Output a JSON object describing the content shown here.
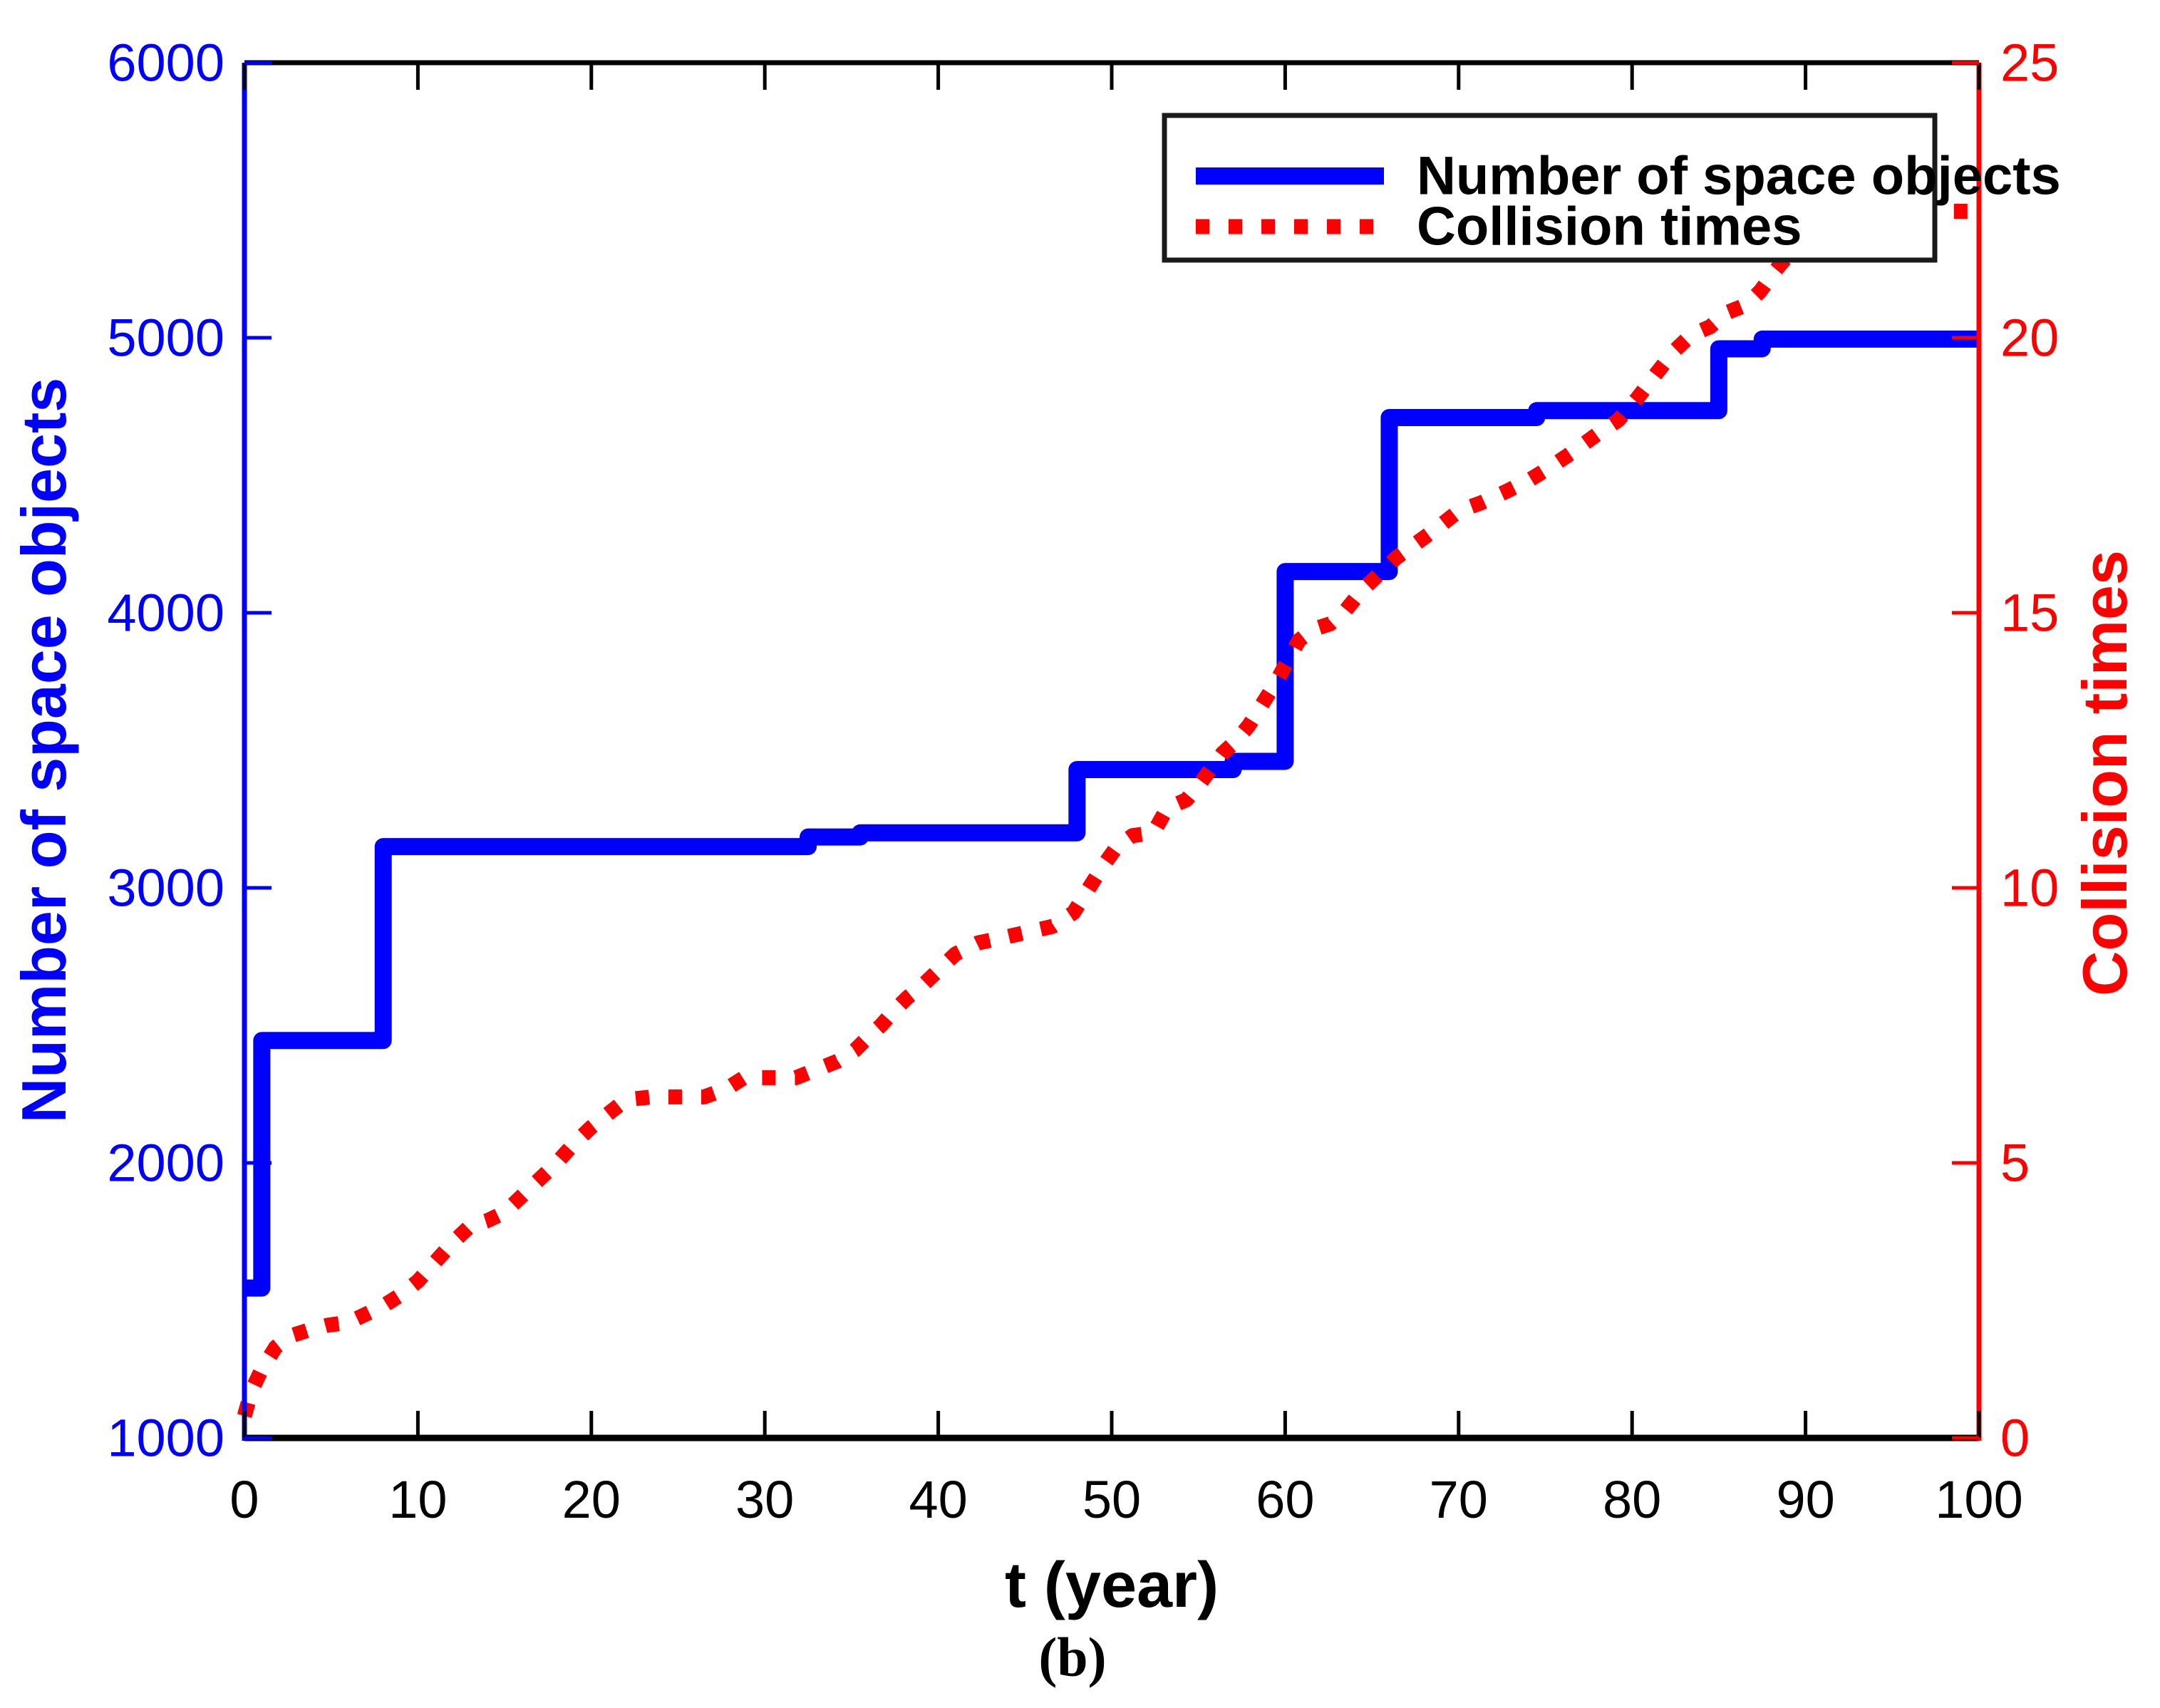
{
  "caption": "(b)",
  "chart_data": {
    "type": "line",
    "title": "",
    "xlabel": "t (year)",
    "ylabel_left": "Number of space objects",
    "ylabel_right": "Collision times",
    "x_range": [
      0,
      100
    ],
    "y_left_range": [
      1000,
      6000
    ],
    "y_right_range": [
      0,
      25
    ],
    "x_ticks": [
      0,
      10,
      20,
      30,
      40,
      50,
      60,
      70,
      80,
      90,
      100
    ],
    "y_left_ticks": [
      1000,
      2000,
      3000,
      4000,
      5000,
      6000
    ],
    "y_right_ticks": [
      0,
      5,
      10,
      15,
      20,
      25
    ],
    "grid": "off",
    "legend_position": "top-right-inside",
    "colors": {
      "objects_line": "#0000ff",
      "collisions_line": "#ff0000",
      "x_axis": "#000000",
      "left_axis": "#0000ff",
      "right_axis": "#ff0000",
      "background": "#ffffff",
      "legend_border": "#1a1a1a"
    },
    "series": [
      {
        "name": "Number of space objects",
        "axis": "left",
        "style": "step-solid",
        "color": "#0000ff",
        "steps": [
          [
            0,
            1545
          ],
          [
            1,
            2445
          ],
          [
            8,
            3150
          ],
          [
            32.5,
            3185
          ],
          [
            35.5,
            3200
          ],
          [
            48,
            3430
          ],
          [
            57,
            3460
          ],
          [
            60,
            4150
          ],
          [
            66,
            4710
          ],
          [
            74.5,
            4735
          ],
          [
            85,
            4960
          ],
          [
            87.5,
            4995
          ],
          [
            100,
            4995
          ]
        ]
      },
      {
        "name": "Collision times",
        "axis": "right",
        "style": "dotted",
        "color": "#ff0000",
        "points": [
          [
            0,
            0.4
          ],
          [
            0.4,
            0.85
          ],
          [
            1,
            1.25
          ],
          [
            1.8,
            1.65
          ],
          [
            2.6,
            1.85
          ],
          [
            3.6,
            1.95
          ],
          [
            4.8,
            2.05
          ],
          [
            6,
            2.1
          ],
          [
            7,
            2.25
          ],
          [
            8,
            2.4
          ],
          [
            9,
            2.6
          ],
          [
            10,
            2.85
          ],
          [
            11,
            3.2
          ],
          [
            12,
            3.55
          ],
          [
            13,
            3.85
          ],
          [
            14,
            3.95
          ],
          [
            15,
            4.1
          ],
          [
            16,
            4.4
          ],
          [
            17,
            4.7
          ],
          [
            18,
            5.0
          ],
          [
            19,
            5.35
          ],
          [
            20,
            5.65
          ],
          [
            21,
            5.9
          ],
          [
            22,
            6.15
          ],
          [
            23.5,
            6.2
          ],
          [
            25,
            6.2
          ],
          [
            26.5,
            6.2
          ],
          [
            27.8,
            6.35
          ],
          [
            28.8,
            6.55
          ],
          [
            30.2,
            6.55
          ],
          [
            31.8,
            6.55
          ],
          [
            33,
            6.7
          ],
          [
            34.2,
            6.85
          ],
          [
            35.2,
            7.05
          ],
          [
            36,
            7.3
          ],
          [
            36.7,
            7.5
          ],
          [
            37.4,
            7.75
          ],
          [
            38.2,
            8.0
          ],
          [
            39,
            8.2
          ],
          [
            40,
            8.5
          ],
          [
            41,
            8.8
          ],
          [
            42.3,
            9.0
          ],
          [
            43.8,
            9.1
          ],
          [
            45.2,
            9.2
          ],
          [
            46.6,
            9.3
          ],
          [
            47.8,
            9.55
          ],
          [
            48.7,
            10.0
          ],
          [
            49.5,
            10.4
          ],
          [
            50.3,
            10.75
          ],
          [
            51.2,
            10.95
          ],
          [
            52.4,
            11.0
          ],
          [
            53.2,
            11.45
          ],
          [
            54.3,
            11.6
          ],
          [
            55.1,
            11.9
          ],
          [
            55.8,
            12.2
          ],
          [
            56.4,
            12.45
          ],
          [
            57.1,
            12.65
          ],
          [
            57.9,
            12.95
          ],
          [
            58.7,
            13.35
          ],
          [
            59.4,
            13.7
          ],
          [
            60.1,
            14.1
          ],
          [
            60.8,
            14.5
          ],
          [
            61.6,
            14.7
          ],
          [
            62.6,
            14.8
          ],
          [
            63.5,
            15.05
          ],
          [
            64.4,
            15.4
          ],
          [
            65.4,
            15.7
          ],
          [
            66.4,
            16.0
          ],
          [
            67.5,
            16.25
          ],
          [
            68.8,
            16.55
          ],
          [
            70,
            16.85
          ],
          [
            71.3,
            17.0
          ],
          [
            72.7,
            17.2
          ],
          [
            74,
            17.4
          ],
          [
            75.3,
            17.65
          ],
          [
            76.7,
            17.95
          ],
          [
            78,
            18.25
          ],
          [
            79.2,
            18.5
          ],
          [
            80.3,
            18.9
          ],
          [
            81.4,
            19.35
          ],
          [
            82.4,
            19.75
          ],
          [
            83.4,
            20.05
          ],
          [
            84.5,
            20.2
          ],
          [
            85.4,
            20.45
          ],
          [
            86.6,
            20.6
          ],
          [
            87.4,
            20.85
          ],
          [
            88.2,
            21.2
          ],
          [
            89,
            21.5
          ],
          [
            89.8,
            21.8
          ],
          [
            90.8,
            22.0
          ],
          [
            92.5,
            22.15
          ],
          [
            94.5,
            22.2
          ],
          [
            96.5,
            22.25
          ],
          [
            98.2,
            22.3
          ],
          [
            100,
            22.3
          ]
        ]
      }
    ]
  }
}
